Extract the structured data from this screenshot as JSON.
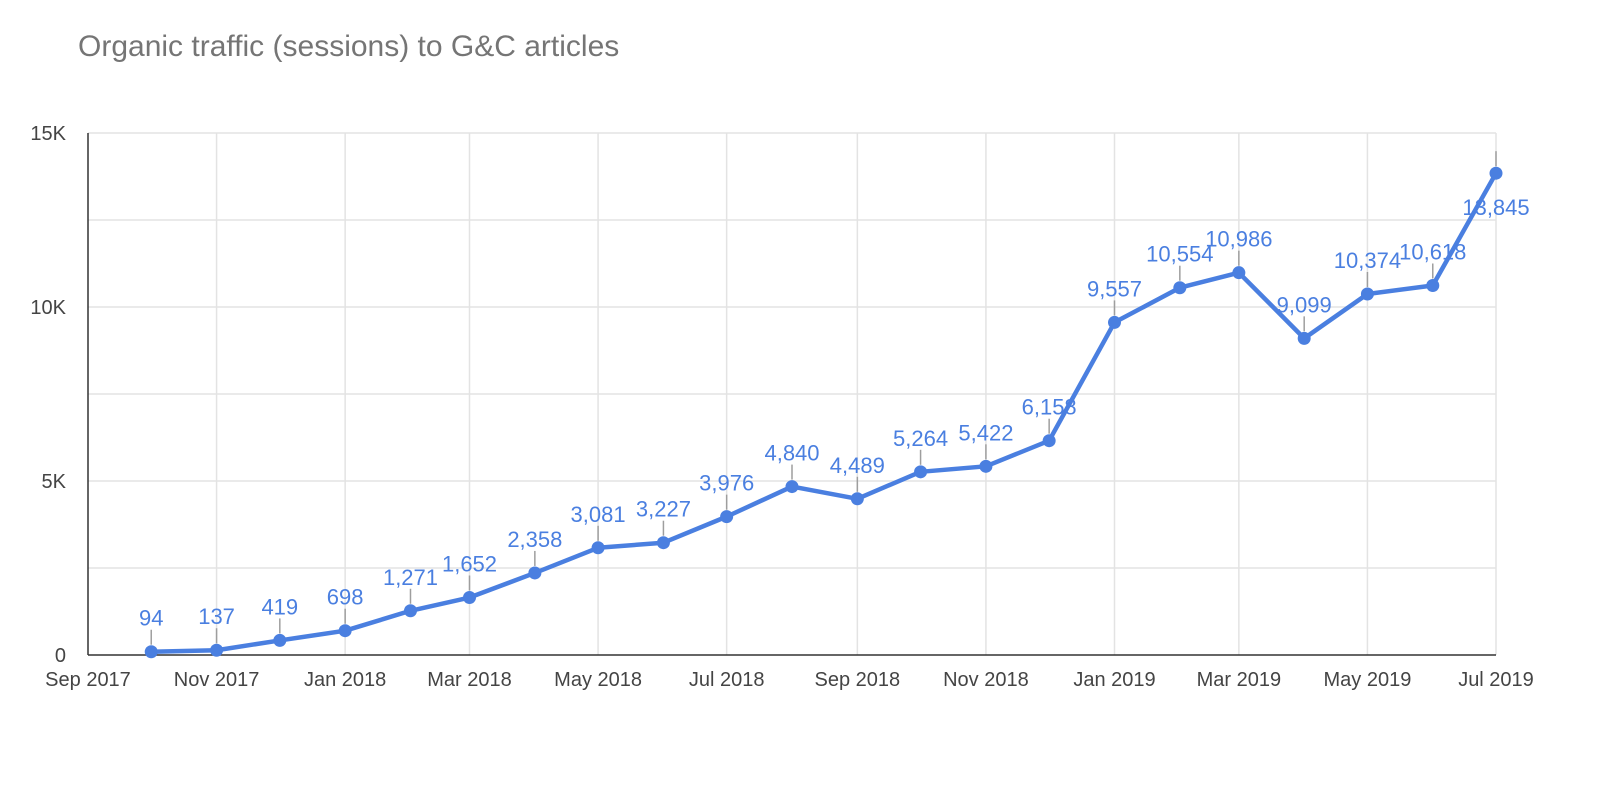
{
  "title": "Organic traffic (sessions) to G&C articles",
  "colors": {
    "line": "#4a7fe0",
    "label": "#4a7fe0",
    "grid": "#e3e3e3",
    "axis": "#333333",
    "leader": "#9e9e9e"
  },
  "chart_data": {
    "type": "line",
    "title": "Organic traffic (sessions) to G&C articles",
    "xlabel": "",
    "ylabel": "",
    "ylim": [
      0,
      15000
    ],
    "xlim": [
      "2017-09-01",
      "2019-07-01"
    ],
    "y_ticks": [
      0,
      5000,
      10000,
      15000
    ],
    "y_tick_labels": [
      "0",
      "5K",
      "10K",
      "15K"
    ],
    "x_ticks": [
      "2017-09-01",
      "2017-11-01",
      "2018-01-01",
      "2018-03-01",
      "2018-05-01",
      "2018-07-01",
      "2018-09-01",
      "2018-11-01",
      "2019-01-01",
      "2019-03-01",
      "2019-05-01",
      "2019-07-01"
    ],
    "x_tick_labels": [
      "Sep 2017",
      "Nov 2017",
      "Jan 2018",
      "Mar 2018",
      "May 2018",
      "Jul 2018",
      "Sep 2018",
      "Nov 2018",
      "Jan 2019",
      "Mar 2019",
      "May 2019",
      "Jul 2019"
    ],
    "grid": true,
    "legend": "none",
    "series": [
      {
        "x": [
          "2017-10-01",
          "2017-11-01",
          "2017-12-01",
          "2018-01-01",
          "2018-02-01",
          "2018-03-01",
          "2018-04-01",
          "2018-05-01",
          "2018-06-01",
          "2018-07-01",
          "2018-08-01",
          "2018-09-01",
          "2018-10-01",
          "2018-11-01",
          "2018-12-01",
          "2019-01-01",
          "2019-02-01",
          "2019-03-01",
          "2019-04-01",
          "2019-05-01",
          "2019-06-01",
          "2019-07-01"
        ],
        "values": [
          94,
          137,
          419,
          698,
          1271,
          1652,
          2358,
          3081,
          3227,
          3976,
          4840,
          4489,
          5264,
          5422,
          6158,
          9557,
          10554,
          10986,
          9099,
          10374,
          10618,
          13845
        ],
        "labels": [
          "94",
          "137",
          "419",
          "698",
          "1,271",
          "1,652",
          "2,358",
          "3,081",
          "3,227",
          "3,976",
          "4,840",
          "4,489",
          "5,264",
          "5,422",
          "6,158",
          "9,557",
          "10,554",
          "10,986",
          "9,099",
          "10,374",
          "10,618",
          "13,845"
        ]
      }
    ]
  }
}
